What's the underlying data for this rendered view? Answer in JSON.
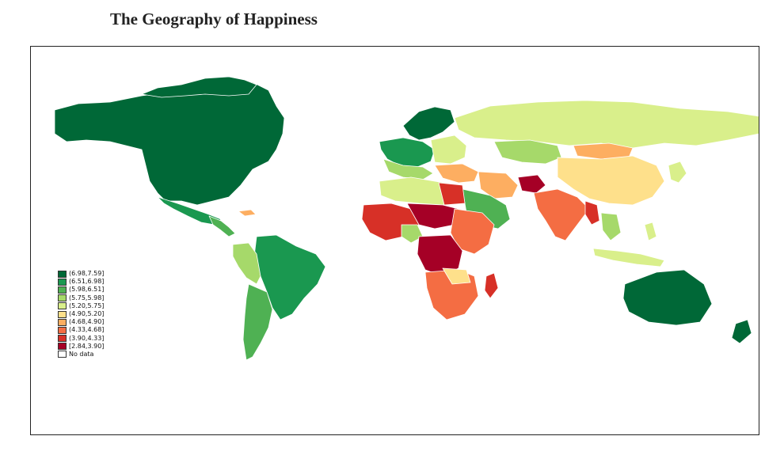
{
  "title": "The Geography of Happiness",
  "legend": [
    {
      "label": "(6.98,7.59]",
      "color": "#006837"
    },
    {
      "label": "(6.51,6.98]",
      "color": "#1a9850"
    },
    {
      "label": "(5.98,6.51]",
      "color": "#4fb153"
    },
    {
      "label": "(5.75,5.98]",
      "color": "#a6d96a"
    },
    {
      "label": "(5.20,5.75]",
      "color": "#d9ef8b"
    },
    {
      "label": "(4.90,5.20]",
      "color": "#fee08b"
    },
    {
      "label": "(4.68,4.90]",
      "color": "#fdae61"
    },
    {
      "label": "(4.33,4.68]",
      "color": "#f46d43"
    },
    {
      "label": "(3.90,4.33]",
      "color": "#d73027"
    },
    {
      "label": "[2.84,3.90]",
      "color": "#a50026"
    },
    {
      "label": "No data",
      "color": "#ffffff"
    }
  ]
}
